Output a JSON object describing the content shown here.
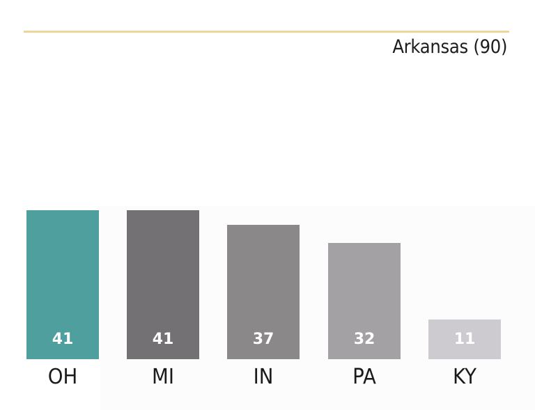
{
  "chart_data": {
    "type": "bar",
    "title": "",
    "subtitle": "Arkansas (90)",
    "categories": [
      "OH",
      "MI",
      "IN",
      "PA",
      "KY"
    ],
    "values": [
      41,
      41,
      37,
      32,
      11
    ],
    "bar_colors": [
      "#4f9f9f",
      "#737174",
      "#8a8889",
      "#a3a1a4",
      "#cdcbcf"
    ],
    "value_labels_inside": true,
    "xlabel": "",
    "ylabel": "",
    "grid": false,
    "legend": false,
    "ylim": [
      0,
      41
    ]
  },
  "header": {
    "rule_color": "#efd59a",
    "subtitle": "Arkansas (90)"
  }
}
